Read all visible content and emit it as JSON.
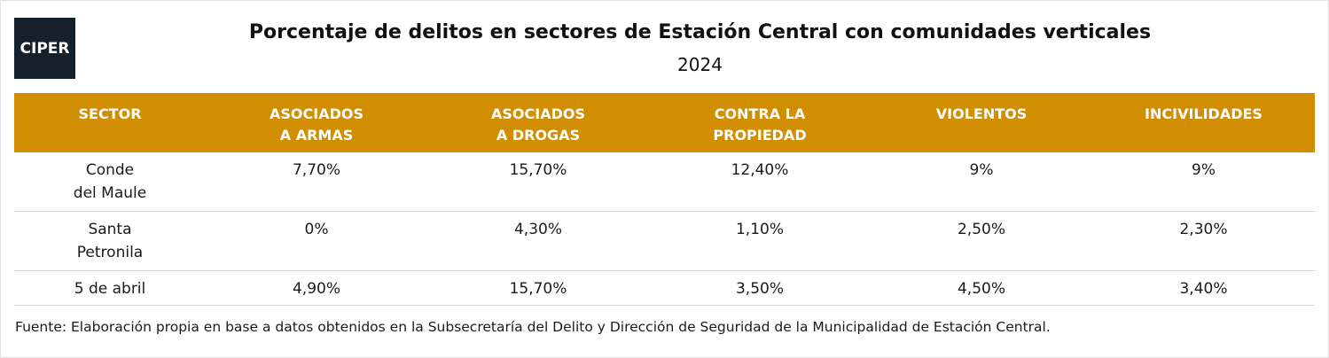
{
  "logo": {
    "text": "CIPER"
  },
  "chart_data": {
    "type": "table",
    "title": "Porcentaje de delitos en sectores de Estación Central con comunidades verticales",
    "subtitle": "2024",
    "columns": [
      "SECTOR",
      "ASOCIADOS\nA ARMAS",
      "ASOCIADOS\nA DROGAS",
      "CONTRA LA\nPROPIEDAD",
      "VIOLENTOS",
      "INCIVILIDADES"
    ],
    "rows": [
      {
        "sector": "Conde\ndel Maule",
        "values": [
          "7,70%",
          "15,70%",
          "12,40%",
          "9%",
          "9%"
        ]
      },
      {
        "sector": "Santa\nPetronila",
        "values": [
          "0%",
          "4,30%",
          "1,10%",
          "2,50%",
          "2,30%"
        ]
      },
      {
        "sector": "5 de abril",
        "values": [
          "4,90%",
          "15,70%",
          "3,50%",
          "4,50%",
          "3,40%"
        ]
      }
    ],
    "header_color": "#d18e00",
    "source": "Fuente: Elaboración propia en base a datos obtenidos en la Subsecretaría del Delito y Dirección de Seguridad de la Municipalidad de Estación Central."
  }
}
